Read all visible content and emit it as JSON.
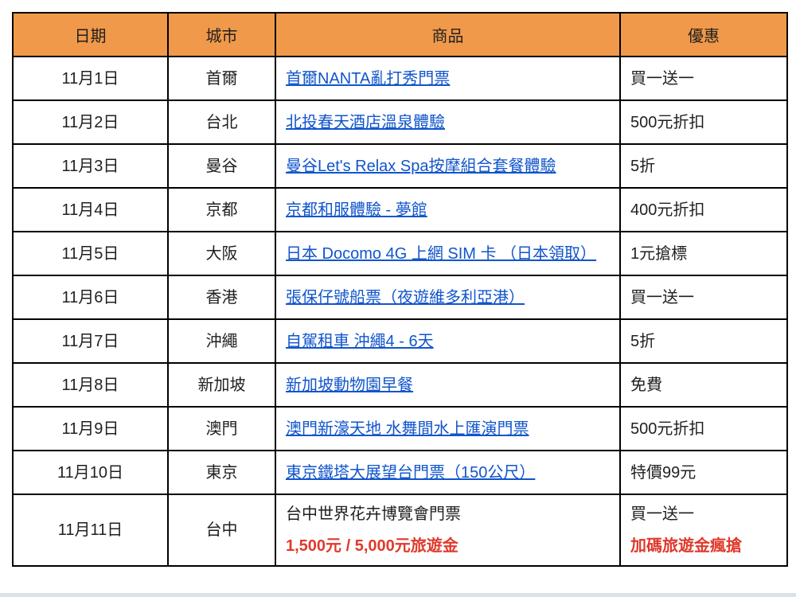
{
  "colors": {
    "header_bg": "#F0994A",
    "link": "#1155CC",
    "highlight": "#E0392C",
    "border": "#000000",
    "text": "#1F1F1F"
  },
  "table": {
    "headers": [
      "日期",
      "城市",
      "商品",
      "優惠"
    ],
    "rows": [
      {
        "date": "11月1日",
        "city": "首爾",
        "product": "首爾NANTA亂打秀門票",
        "product_is_link": true,
        "offer": "買一送一"
      },
      {
        "date": "11月2日",
        "city": "台北",
        "product": "北投春天酒店溫泉體驗",
        "product_is_link": true,
        "offer": "500元折扣"
      },
      {
        "date": "11月3日",
        "city": "曼谷",
        "product": "曼谷Let's Relax Spa按摩組合套餐體驗",
        "product_is_link": true,
        "offer": "5折"
      },
      {
        "date": "11月4日",
        "city": "京都",
        "product": "京都和服體驗 - 夢館",
        "product_is_link": true,
        "offer": "400元折扣"
      },
      {
        "date": "11月5日",
        "city": "大阪",
        "product": "日本 Docomo 4G 上網 SIM 卡 （日本領取）",
        "product_is_link": true,
        "offer": "1元搶標"
      },
      {
        "date": "11月6日",
        "city": "香港",
        "product": "張保仔號船票（夜遊維多利亞港）",
        "product_is_link": true,
        "offer": "買一送一"
      },
      {
        "date": "11月7日",
        "city": "沖繩",
        "product": "自駕租車 沖繩4 - 6天",
        "product_is_link": true,
        "offer": "5折"
      },
      {
        "date": "11月8日",
        "city": "新加坡",
        "product": "新加坡動物園早餐",
        "product_is_link": true,
        "offer": "免費"
      },
      {
        "date": "11月9日",
        "city": "澳門",
        "product": "澳門新濠天地 水舞間水上匯演門票",
        "product_is_link": true,
        "offer": "500元折扣"
      },
      {
        "date": "11月10日",
        "city": "東京",
        "product": "東京鐵塔大展望台門票（150公尺）",
        "product_is_link": true,
        "offer": "特價99元"
      },
      {
        "date": "11月11日",
        "city": "台中",
        "product": "台中世界花卉博覽會門票",
        "product_is_link": false,
        "product_note": "1,500元 / 5,000元旅遊金",
        "offer": "買一送一",
        "offer_note": "加碼旅遊金瘋搶"
      }
    ]
  }
}
